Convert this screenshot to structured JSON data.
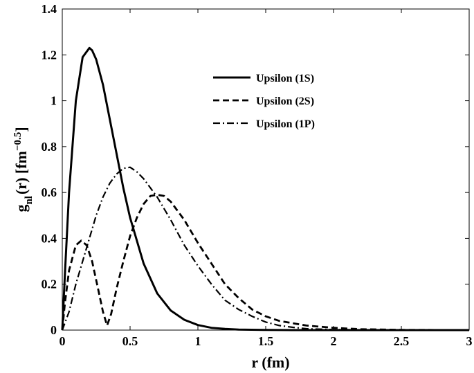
{
  "chart_data": {
    "type": "line",
    "title": "",
    "xlabel": "r (fm)",
    "ylabel": {
      "main": "g",
      "sub": "nl",
      "rest": "(r) [fm",
      "sup": "−0.5",
      "close": "]"
    },
    "xlim": [
      0,
      3
    ],
    "ylim": [
      0,
      1.4
    ],
    "xticks": [
      "0",
      "0.5",
      "1",
      "1.5",
      "2",
      "2.5",
      "3"
    ],
    "yticks": [
      "0",
      "0.2",
      "0.4",
      "0.6",
      "0.8",
      "1",
      "1.2",
      "1.4"
    ],
    "grid": false,
    "legend_position": "top-right",
    "series": [
      {
        "name": "Upsilon (1S)",
        "style": "solid",
        "x": [
          0,
          0.02,
          0.05,
          0.1,
          0.15,
          0.2,
          0.22,
          0.25,
          0.3,
          0.35,
          0.4,
          0.45,
          0.5,
          0.6,
          0.7,
          0.8,
          0.9,
          1.0,
          1.1,
          1.2,
          1.3,
          1.5,
          1.7,
          2.0,
          2.5,
          3.0
        ],
        "y": [
          0,
          0.25,
          0.6,
          1.0,
          1.19,
          1.23,
          1.22,
          1.18,
          1.07,
          0.92,
          0.77,
          0.62,
          0.49,
          0.29,
          0.16,
          0.085,
          0.045,
          0.022,
          0.01,
          0.005,
          0.002,
          0.0005,
          0,
          0,
          0,
          0
        ]
      },
      {
        "name": "Upsilon (2S)",
        "style": "dashed",
        "x": [
          0,
          0.02,
          0.05,
          0.1,
          0.14,
          0.18,
          0.22,
          0.26,
          0.3,
          0.33,
          0.36,
          0.4,
          0.45,
          0.5,
          0.55,
          0.6,
          0.65,
          0.7,
          0.75,
          0.8,
          0.9,
          1.0,
          1.1,
          1.2,
          1.3,
          1.4,
          1.5,
          1.6,
          1.8,
          2.0,
          2.2,
          2.5,
          3.0
        ],
        "y": [
          0,
          0.12,
          0.26,
          0.37,
          0.39,
          0.37,
          0.3,
          0.19,
          0.08,
          0.02,
          0.07,
          0.18,
          0.3,
          0.41,
          0.49,
          0.55,
          0.585,
          0.59,
          0.585,
          0.56,
          0.48,
          0.38,
          0.29,
          0.2,
          0.14,
          0.09,
          0.06,
          0.04,
          0.02,
          0.01,
          0.004,
          0.001,
          0
        ]
      },
      {
        "name": "Upsilon (1P)",
        "style": "dashdot",
        "x": [
          0,
          0.05,
          0.1,
          0.15,
          0.2,
          0.25,
          0.3,
          0.35,
          0.4,
          0.45,
          0.5,
          0.55,
          0.6,
          0.7,
          0.8,
          0.9,
          1.0,
          1.1,
          1.2,
          1.3,
          1.4,
          1.5,
          1.6,
          1.7,
          1.8,
          2.0,
          2.5,
          3.0
        ],
        "y": [
          0,
          0.08,
          0.2,
          0.3,
          0.4,
          0.5,
          0.58,
          0.64,
          0.68,
          0.705,
          0.71,
          0.69,
          0.66,
          0.58,
          0.48,
          0.37,
          0.28,
          0.2,
          0.13,
          0.09,
          0.06,
          0.035,
          0.02,
          0.012,
          0.006,
          0.002,
          0,
          0
        ]
      }
    ]
  }
}
